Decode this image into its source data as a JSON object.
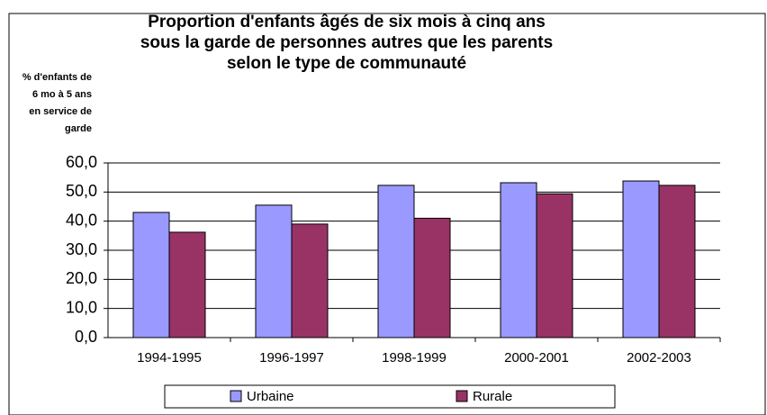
{
  "chart_data": {
    "type": "bar",
    "title": [
      "Proportion d'enfants âgés de six mois à cinq ans",
      "sous la garde de personnes autres que les parents",
      "selon le type de communauté"
    ],
    "ylabel": [
      "% d'enfants de",
      "6 mo à 5 ans",
      "en service de",
      "garde"
    ],
    "categories": [
      "1994-1995",
      "1996-1997",
      "1998-1999",
      "2000-2001",
      "2002-2003"
    ],
    "series": [
      {
        "name": "Urbaine",
        "color": "#9999ff",
        "values": [
          43.0,
          45.5,
          52.3,
          53.2,
          53.8
        ]
      },
      {
        "name": "Rurale",
        "color": "#993366",
        "values": [
          36.2,
          39.0,
          41.0,
          49.4,
          52.3
        ]
      }
    ],
    "ylim": [
      0,
      60
    ],
    "yticks": [
      {
        "value": 0,
        "label": "0,0"
      },
      {
        "value": 10,
        "label": "10,0"
      },
      {
        "value": 20,
        "label": "20,0"
      },
      {
        "value": 30,
        "label": "30,0"
      },
      {
        "value": 40,
        "label": "40,0"
      },
      {
        "value": 50,
        "label": "50,0"
      },
      {
        "value": 60,
        "label": "60,0"
      }
    ],
    "grid": true,
    "legend": "bottom"
  }
}
